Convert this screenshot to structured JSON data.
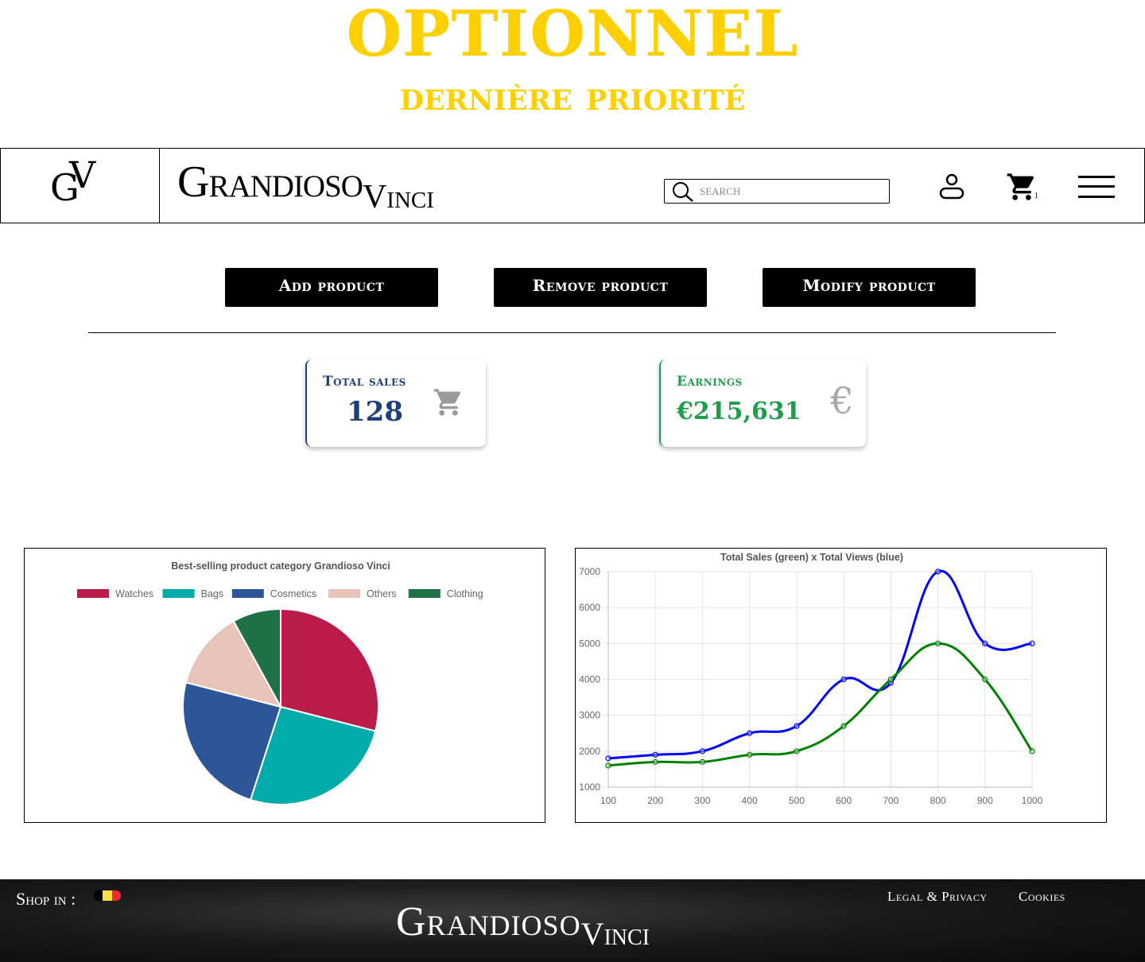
{
  "banner": {
    "title": "OPTIONNEL",
    "subtitle": "dernière priorité"
  },
  "header": {
    "logo_g": "G",
    "logo_v": "V",
    "brand_main": "Grandioso",
    "brand_sub": "Vinci",
    "search_placeholder": "SEARCH",
    "cart_count": "1",
    "icons": [
      "search-icon",
      "user-icon",
      "cart-icon",
      "menu-icon"
    ]
  },
  "actions": {
    "add_label": "Add product",
    "remove_label": "Remove product",
    "modify_label": "Modify product"
  },
  "stats": {
    "sales": {
      "label": "Total sales",
      "value": "128",
      "color": "#1F3F7A",
      "icon": "cart-icon"
    },
    "earnings": {
      "label": "Earnings",
      "value": "€215,631",
      "color": "#1E9E4A",
      "icon": "euro-icon"
    }
  },
  "chart_data": [
    {
      "type": "pie",
      "title": "Best-selling product category Grandioso Vinci",
      "legend_position": "top",
      "categories": [
        "Watches",
        "Bags",
        "Cosmetics",
        "Others",
        "Clothing"
      ],
      "values": [
        29,
        26,
        24,
        13,
        8
      ],
      "colors": [
        "#BA1C4A",
        "#00ABAA",
        "#2C5697",
        "#E8C3B9",
        "#1E7145"
      ]
    },
    {
      "type": "line",
      "title": "Total Sales (green) x Total Views (blue)",
      "x": [
        100,
        200,
        300,
        400,
        500,
        600,
        700,
        800,
        900,
        1000
      ],
      "ylim": [
        1000,
        7000
      ],
      "yticks": [
        1000,
        2000,
        3000,
        4000,
        5000,
        6000,
        7000
      ],
      "grid": true,
      "series": [
        {
          "values": [
            1800,
            1900,
            2000,
            2500,
            2700,
            4000,
            3900,
            7000,
            5000,
            5000
          ],
          "color": "#0000FF"
        },
        {
          "values": [
            1600,
            1700,
            1700,
            1900,
            2000,
            2700,
            4000,
            5000,
            4000,
            2000
          ],
          "color": "#008000"
        }
      ]
    }
  ],
  "footer": {
    "shop_in": "Shop in :",
    "flag_colors": [
      "#000000",
      "#FAE042",
      "#ED2939"
    ],
    "brand_main": "Grandioso",
    "brand_sub": "Vinci",
    "legal": "Legal & Privacy",
    "cookies": "Cookies"
  }
}
